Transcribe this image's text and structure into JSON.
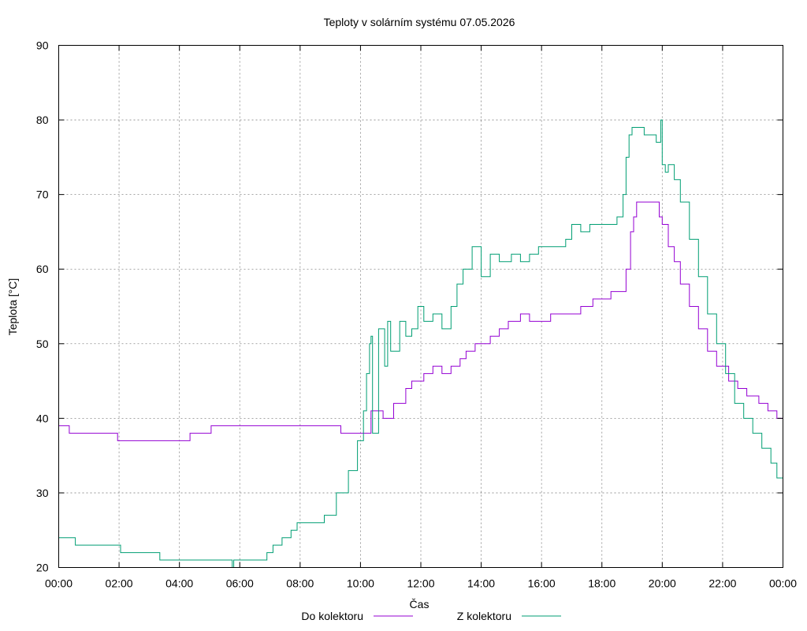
{
  "chart_data": {
    "type": "line",
    "title": "Teploty v solárním systému 07.05.2026",
    "xlabel": "Čas",
    "ylabel": "Teplota [°C]",
    "x_unit": "hours since 00:00",
    "xlim": [
      0,
      24
    ],
    "ylim": [
      20,
      90
    ],
    "x_ticks": [
      0,
      2,
      4,
      6,
      8,
      10,
      12,
      14,
      16,
      18,
      20,
      22,
      24
    ],
    "x_tick_labels": [
      "00:00",
      "02:00",
      "04:00",
      "06:00",
      "08:00",
      "10:00",
      "12:00",
      "14:00",
      "16:00",
      "18:00",
      "20:00",
      "22:00",
      "00:00"
    ],
    "y_ticks": [
      20,
      30,
      40,
      50,
      60,
      70,
      80,
      90
    ],
    "y_tick_labels": [
      "20",
      "30",
      "40",
      "50",
      "60",
      "70",
      "80",
      "90"
    ],
    "grid": true,
    "legend": "bottom",
    "series": [
      {
        "name": "Do kolektoru",
        "color": "#9400d3",
        "points": [
          [
            0,
            39
          ],
          [
            0.3,
            39
          ],
          [
            0.35,
            38
          ],
          [
            1.9,
            38
          ],
          [
            1.95,
            37
          ],
          [
            4.3,
            37
          ],
          [
            4.35,
            38
          ],
          [
            5.0,
            38
          ],
          [
            5.05,
            39
          ],
          [
            9.3,
            39
          ],
          [
            9.35,
            38
          ],
          [
            10.3,
            38
          ],
          [
            10.35,
            41
          ],
          [
            10.7,
            41
          ],
          [
            10.75,
            40
          ],
          [
            11.0,
            40
          ],
          [
            11.1,
            42
          ],
          [
            11.5,
            44
          ],
          [
            11.7,
            45
          ],
          [
            12.0,
            45
          ],
          [
            12.1,
            46
          ],
          [
            12.4,
            47
          ],
          [
            12.7,
            46
          ],
          [
            13.0,
            47
          ],
          [
            13.3,
            48
          ],
          [
            13.5,
            49
          ],
          [
            13.8,
            50
          ],
          [
            14.2,
            50
          ],
          [
            14.3,
            51
          ],
          [
            14.6,
            52
          ],
          [
            14.9,
            53
          ],
          [
            15.3,
            54
          ],
          [
            15.6,
            53
          ],
          [
            16.2,
            53
          ],
          [
            16.3,
            54
          ],
          [
            17.2,
            54
          ],
          [
            17.3,
            55
          ],
          [
            17.7,
            56
          ],
          [
            18.2,
            56
          ],
          [
            18.3,
            57
          ],
          [
            18.7,
            57
          ],
          [
            18.8,
            60
          ],
          [
            18.95,
            65
          ],
          [
            19.05,
            67
          ],
          [
            19.15,
            69
          ],
          [
            19.8,
            69
          ],
          [
            19.9,
            67
          ],
          [
            20.0,
            66
          ],
          [
            20.2,
            63
          ],
          [
            20.4,
            61
          ],
          [
            20.6,
            58
          ],
          [
            20.9,
            55
          ],
          [
            21.2,
            52
          ],
          [
            21.5,
            49
          ],
          [
            21.8,
            47
          ],
          [
            22.0,
            47
          ],
          [
            22.2,
            45
          ],
          [
            22.5,
            44
          ],
          [
            22.8,
            43
          ],
          [
            23.2,
            42
          ],
          [
            23.5,
            41
          ],
          [
            23.7,
            41
          ],
          [
            23.8,
            40
          ],
          [
            24,
            40
          ]
        ]
      },
      {
        "name": "Z kolektoru",
        "color": "#009e73",
        "points": [
          [
            0,
            24
          ],
          [
            0.5,
            24
          ],
          [
            0.55,
            23
          ],
          [
            2.0,
            23
          ],
          [
            2.05,
            22
          ],
          [
            3.3,
            22
          ],
          [
            3.35,
            21
          ],
          [
            5.7,
            21
          ],
          [
            5.75,
            20
          ],
          [
            5.8,
            21
          ],
          [
            6.8,
            21
          ],
          [
            6.9,
            22
          ],
          [
            7.1,
            23
          ],
          [
            7.4,
            24
          ],
          [
            7.7,
            25
          ],
          [
            7.9,
            26
          ],
          [
            8.6,
            26
          ],
          [
            8.8,
            27
          ],
          [
            9.2,
            30
          ],
          [
            9.6,
            33
          ],
          [
            9.9,
            37
          ],
          [
            10.1,
            41
          ],
          [
            10.2,
            46
          ],
          [
            10.3,
            50
          ],
          [
            10.35,
            51
          ],
          [
            10.4,
            38
          ],
          [
            10.6,
            52
          ],
          [
            10.8,
            47
          ],
          [
            10.9,
            53
          ],
          [
            11.0,
            49
          ],
          [
            11.3,
            53
          ],
          [
            11.5,
            51
          ],
          [
            11.7,
            52
          ],
          [
            11.9,
            55
          ],
          [
            12.1,
            53
          ],
          [
            12.4,
            54
          ],
          [
            12.7,
            52
          ],
          [
            13.0,
            55
          ],
          [
            13.2,
            58
          ],
          [
            13.4,
            60
          ],
          [
            13.7,
            63
          ],
          [
            14.0,
            59
          ],
          [
            14.3,
            62
          ],
          [
            14.6,
            61
          ],
          [
            15.0,
            62
          ],
          [
            15.3,
            61
          ],
          [
            15.6,
            62
          ],
          [
            15.9,
            63
          ],
          [
            16.2,
            63
          ],
          [
            16.5,
            63
          ],
          [
            16.8,
            64
          ],
          [
            17.0,
            66
          ],
          [
            17.3,
            65
          ],
          [
            17.6,
            66
          ],
          [
            17.9,
            66
          ],
          [
            18.2,
            66
          ],
          [
            18.5,
            67
          ],
          [
            18.7,
            70
          ],
          [
            18.8,
            75
          ],
          [
            18.9,
            78
          ],
          [
            19.0,
            79
          ],
          [
            19.2,
            79
          ],
          [
            19.4,
            78
          ],
          [
            19.6,
            78
          ],
          [
            19.8,
            77
          ],
          [
            19.95,
            80
          ],
          [
            20.0,
            74
          ],
          [
            20.1,
            73
          ],
          [
            20.2,
            74
          ],
          [
            20.4,
            72
          ],
          [
            20.6,
            69
          ],
          [
            20.9,
            64
          ],
          [
            21.2,
            59
          ],
          [
            21.5,
            54
          ],
          [
            21.8,
            50
          ],
          [
            22.1,
            46
          ],
          [
            22.4,
            42
          ],
          [
            22.7,
            40
          ],
          [
            23.0,
            38
          ],
          [
            23.3,
            36
          ],
          [
            23.6,
            34
          ],
          [
            23.8,
            32
          ],
          [
            24,
            31
          ]
        ]
      }
    ]
  }
}
